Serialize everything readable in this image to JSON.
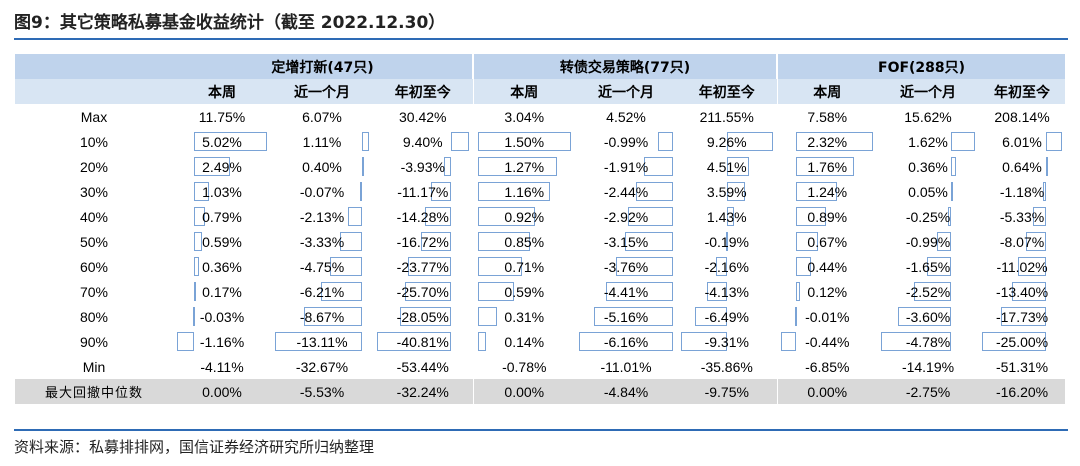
{
  "title": "图9：其它策略私募基金收益统计（截至 2022.12.30）",
  "source": "资料来源：私募排排网，国信证券经济研究所归纳整理",
  "groups": [
    "定增打新(47只)",
    "转债交易策略(77只)",
    "FOF(288只)"
  ],
  "subheaders": [
    "本周",
    "近一个月",
    "年初至今",
    "本周",
    "近一个月",
    "年初至今",
    "本周",
    "近一个月",
    "年初至今"
  ],
  "rows": [
    {
      "label": "Max",
      "bars": false,
      "cells": [
        "11.75%",
        "6.07%",
        "30.42%",
        "3.04%",
        "4.52%",
        "211.55%",
        "7.58%",
        "15.62%",
        "208.14%"
      ]
    },
    {
      "label": "10%",
      "bars": true,
      "cells": [
        "5.02%",
        "1.11%",
        "9.40%",
        "1.50%",
        "-0.99%",
        "9.26%",
        "2.32%",
        "1.62%",
        "6.01%"
      ]
    },
    {
      "label": "20%",
      "bars": true,
      "cells": [
        "2.49%",
        "0.40%",
        "-3.93%",
        "1.27%",
        "-1.91%",
        "4.51%",
        "1.76%",
        "0.36%",
        "0.64%"
      ]
    },
    {
      "label": "30%",
      "bars": true,
      "cells": [
        "1.03%",
        "-0.07%",
        "-11.17%",
        "1.16%",
        "-2.44%",
        "3.59%",
        "1.24%",
        "0.05%",
        "-1.18%"
      ]
    },
    {
      "label": "40%",
      "bars": true,
      "cells": [
        "0.79%",
        "-2.13%",
        "-14.28%",
        "0.92%",
        "-2.92%",
        "1.43%",
        "0.89%",
        "-0.25%",
        "-5.33%"
      ]
    },
    {
      "label": "50%",
      "bars": true,
      "cells": [
        "0.59%",
        "-3.33%",
        "-16.72%",
        "0.85%",
        "-3.15%",
        "-0.19%",
        "0.67%",
        "-0.99%",
        "-8.07%"
      ]
    },
    {
      "label": "60%",
      "bars": true,
      "cells": [
        "0.36%",
        "-4.75%",
        "-23.77%",
        "0.71%",
        "-3.76%",
        "-2.16%",
        "0.44%",
        "-1.65%",
        "-11.02%"
      ]
    },
    {
      "label": "70%",
      "bars": true,
      "cells": [
        "0.17%",
        "-6.21%",
        "-25.70%",
        "0.59%",
        "-4.41%",
        "-4.13%",
        "0.12%",
        "-2.52%",
        "-13.40%"
      ]
    },
    {
      "label": "80%",
      "bars": true,
      "cells": [
        "-0.03%",
        "-8.67%",
        "-28.05%",
        "0.31%",
        "-5.16%",
        "-6.49%",
        "-0.01%",
        "-3.60%",
        "-17.73%"
      ]
    },
    {
      "label": "90%",
      "bars": true,
      "cells": [
        "-1.16%",
        "-13.11%",
        "-40.81%",
        "0.14%",
        "-6.16%",
        "-9.31%",
        "-0.44%",
        "-4.78%",
        "-25.00%"
      ]
    },
    {
      "label": "Min",
      "bars": false,
      "cells": [
        "-4.11%",
        "-32.67%",
        "-53.44%",
        "-0.78%",
        "-11.01%",
        "-35.86%",
        "-6.85%",
        "-14.19%",
        "-51.31%"
      ]
    },
    {
      "label": "最大回撤中位数",
      "bars": false,
      "median": true,
      "cells": [
        "0.00%",
        "-5.53%",
        "-32.24%",
        "0.00%",
        "-4.84%",
        "-9.75%",
        "0.00%",
        "-2.75%",
        "-16.20%"
      ]
    }
  ]
}
